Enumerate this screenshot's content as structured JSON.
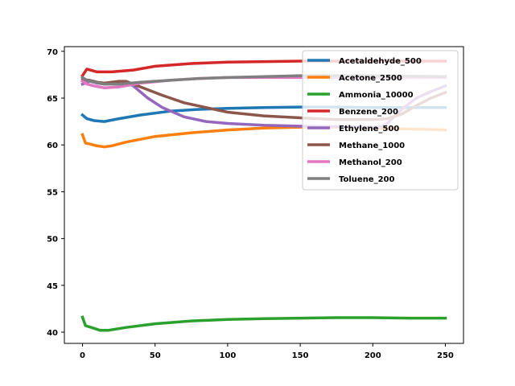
{
  "chart_data": {
    "type": "line",
    "title": "",
    "xlabel": "",
    "ylabel": "",
    "xlim": [
      -12.5,
      262.5
    ],
    "ylim": [
      38.8,
      70.5
    ],
    "xticks": [
      0,
      50,
      100,
      150,
      200,
      250
    ],
    "yticks": [
      40,
      45,
      50,
      55,
      60,
      65,
      70
    ],
    "grid": false,
    "legend": "top-right",
    "series": [
      {
        "name": "Acetaldehyde_500",
        "color": "#1f77b4",
        "x": [
          0,
          3,
          8,
          15,
          25,
          40,
          60,
          80,
          100,
          125,
          150,
          175,
          200,
          225,
          250
        ],
        "y": [
          63.2,
          62.8,
          62.6,
          62.5,
          62.8,
          63.2,
          63.6,
          63.8,
          63.9,
          64.0,
          64.05,
          64.05,
          64.0,
          64.0,
          64.0
        ]
      },
      {
        "name": "Acetone_2500",
        "color": "#ff7f0e",
        "x": [
          0,
          2,
          5,
          10,
          15,
          20,
          30,
          50,
          75,
          100,
          125,
          150,
          175,
          200,
          225,
          250
        ],
        "y": [
          61.1,
          60.2,
          60.1,
          59.9,
          59.8,
          59.9,
          60.3,
          60.9,
          61.3,
          61.6,
          61.8,
          61.9,
          61.9,
          61.8,
          61.7,
          61.6
        ]
      },
      {
        "name": "Ammonia_10000",
        "color": "#2ca02c",
        "x": [
          0,
          2,
          6,
          12,
          18,
          30,
          50,
          75,
          100,
          125,
          150,
          175,
          200,
          225,
          250
        ],
        "y": [
          41.6,
          40.7,
          40.5,
          40.2,
          40.2,
          40.5,
          40.9,
          41.2,
          41.35,
          41.45,
          41.5,
          41.55,
          41.55,
          41.5,
          41.5
        ]
      },
      {
        "name": "Benzene_200",
        "color": "#d62728",
        "x": [
          0,
          3,
          10,
          20,
          35,
          50,
          75,
          100,
          125,
          150,
          175,
          200,
          225,
          250
        ],
        "y": [
          67.4,
          68.1,
          67.8,
          67.8,
          68.0,
          68.4,
          68.7,
          68.85,
          68.9,
          68.95,
          68.95,
          68.95,
          68.95,
          68.95
        ]
      },
      {
        "name": "Ethylene_500",
        "color": "#9467bd",
        "x": [
          0,
          5,
          10,
          15,
          20,
          25,
          30,
          35,
          45,
          55,
          70,
          85,
          100,
          125,
          150,
          175,
          195,
          205,
          210,
          220,
          230,
          240,
          250
        ],
        "y": [
          66.5,
          66.8,
          66.6,
          66.5,
          66.6,
          66.8,
          66.7,
          66.3,
          65.0,
          64.0,
          63.0,
          62.5,
          62.3,
          62.1,
          62.0,
          61.95,
          61.9,
          61.9,
          62.3,
          63.8,
          65.0,
          65.7,
          66.3
        ]
      },
      {
        "name": "Methane_1000",
        "color": "#8c564b",
        "x": [
          0,
          5,
          10,
          15,
          20,
          25,
          30,
          40,
          55,
          70,
          85,
          100,
          125,
          150,
          175,
          200,
          210,
          220,
          230,
          240,
          250
        ],
        "y": [
          67.0,
          66.9,
          66.7,
          66.6,
          66.7,
          66.8,
          66.8,
          66.2,
          65.3,
          64.5,
          64.0,
          63.5,
          63.1,
          62.9,
          62.7,
          62.7,
          62.8,
          63.3,
          64.2,
          65.0,
          65.6
        ]
      },
      {
        "name": "Methanol_200",
        "color": "#e377c2",
        "x": [
          0,
          3,
          8,
          15,
          25,
          40,
          60,
          80,
          100,
          125,
          150,
          175,
          200,
          225,
          250
        ],
        "y": [
          66.8,
          66.5,
          66.3,
          66.1,
          66.2,
          66.6,
          66.9,
          67.1,
          67.2,
          67.2,
          67.2,
          67.2,
          67.2,
          67.2,
          67.2
        ]
      },
      {
        "name": "Toluene_200",
        "color": "#7f7f7f",
        "x": [
          0,
          3,
          8,
          15,
          25,
          40,
          60,
          80,
          100,
          125,
          150,
          175,
          200,
          225,
          250
        ],
        "y": [
          67.2,
          66.9,
          66.7,
          66.5,
          66.5,
          66.7,
          66.9,
          67.1,
          67.2,
          67.3,
          67.4,
          67.4,
          67.4,
          67.35,
          67.3
        ]
      }
    ]
  }
}
